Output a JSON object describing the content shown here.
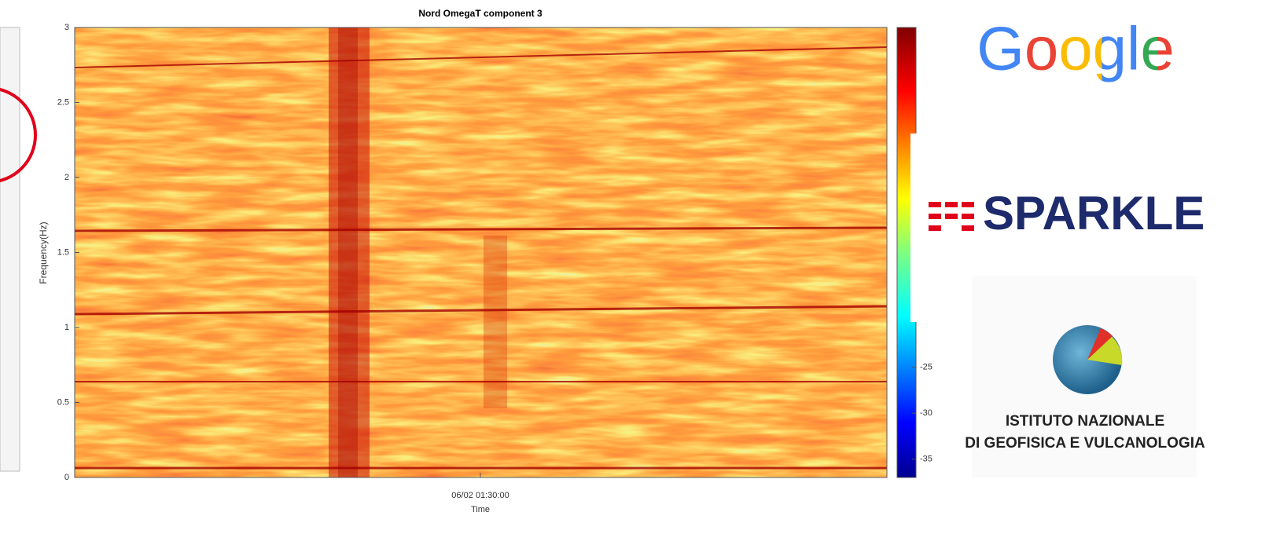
{
  "title": "Nord OmegaT component 3",
  "y_axis": {
    "label": "Frequency(Hz)",
    "ylim": [
      0,
      3
    ],
    "yticks": [
      0,
      0.5,
      1,
      1.5,
      2,
      2.5,
      3
    ]
  },
  "x_axis": {
    "label": "Time",
    "tick_label": "06/02 01:30:00"
  },
  "colorbar": {
    "clim": [
      -37,
      12
    ],
    "ticks": [
      -35,
      -30,
      -25
    ]
  },
  "logos": {
    "google": "Google",
    "sparkle": "SPARKLE",
    "ingv_line1": "ISTITUTO NAZIONALE",
    "ingv_line2": "DI GEOFISICA E VULCANOLOGIA"
  }
}
